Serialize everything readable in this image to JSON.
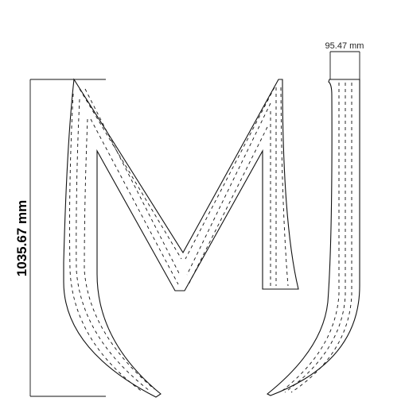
{
  "dimensions": {
    "height_label": "1035.67 mm",
    "width_label": "95.47 mm"
  },
  "colors": {
    "stroke": "#111111",
    "background": "#ffffff"
  }
}
